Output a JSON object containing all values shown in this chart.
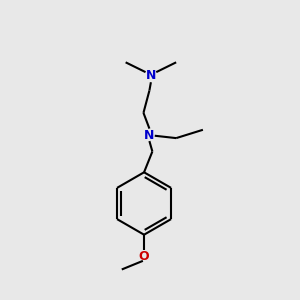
{
  "background_color": "#e8e8e8",
  "bond_color": "#000000",
  "N_color": "#0000cc",
  "O_color": "#cc0000",
  "line_width": 1.5,
  "fig_size": [
    3.0,
    3.0
  ],
  "dpi": 100,
  "xlim": [
    0,
    10
  ],
  "ylim": [
    0,
    10
  ]
}
